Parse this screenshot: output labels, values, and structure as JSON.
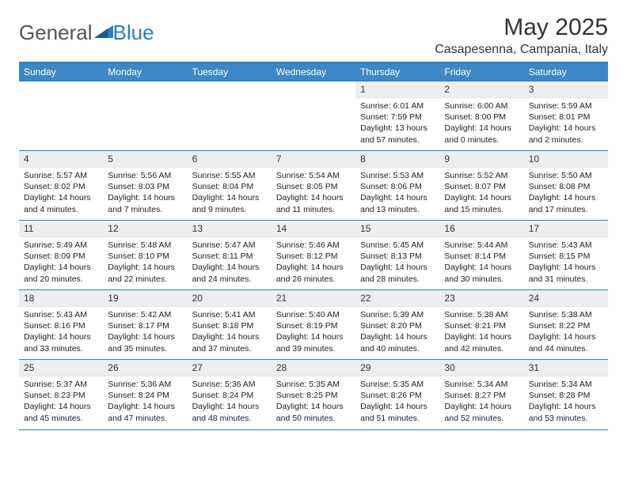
{
  "logo": {
    "text1": "General",
    "text2": "Blue"
  },
  "title": "May 2025",
  "location": "Casapesenna, Campania, Italy",
  "colors": {
    "header_bg": "#3d87c7",
    "header_text": "#ffffff",
    "rule": "#2e7bc0",
    "daynum_bg": "#eeeeee",
    "text": "#222222"
  },
  "day_headers": [
    "Sunday",
    "Monday",
    "Tuesday",
    "Wednesday",
    "Thursday",
    "Friday",
    "Saturday"
  ],
  "weeks": [
    [
      {
        "n": "",
        "sr": "",
        "ss": "",
        "dl": ""
      },
      {
        "n": "",
        "sr": "",
        "ss": "",
        "dl": ""
      },
      {
        "n": "",
        "sr": "",
        "ss": "",
        "dl": ""
      },
      {
        "n": "",
        "sr": "",
        "ss": "",
        "dl": ""
      },
      {
        "n": "1",
        "sr": "Sunrise: 6:01 AM",
        "ss": "Sunset: 7:59 PM",
        "dl": "Daylight: 13 hours and 57 minutes."
      },
      {
        "n": "2",
        "sr": "Sunrise: 6:00 AM",
        "ss": "Sunset: 8:00 PM",
        "dl": "Daylight: 14 hours and 0 minutes."
      },
      {
        "n": "3",
        "sr": "Sunrise: 5:59 AM",
        "ss": "Sunset: 8:01 PM",
        "dl": "Daylight: 14 hours and 2 minutes."
      }
    ],
    [
      {
        "n": "4",
        "sr": "Sunrise: 5:57 AM",
        "ss": "Sunset: 8:02 PM",
        "dl": "Daylight: 14 hours and 4 minutes."
      },
      {
        "n": "5",
        "sr": "Sunrise: 5:56 AM",
        "ss": "Sunset: 8:03 PM",
        "dl": "Daylight: 14 hours and 7 minutes."
      },
      {
        "n": "6",
        "sr": "Sunrise: 5:55 AM",
        "ss": "Sunset: 8:04 PM",
        "dl": "Daylight: 14 hours and 9 minutes."
      },
      {
        "n": "7",
        "sr": "Sunrise: 5:54 AM",
        "ss": "Sunset: 8:05 PM",
        "dl": "Daylight: 14 hours and 11 minutes."
      },
      {
        "n": "8",
        "sr": "Sunrise: 5:53 AM",
        "ss": "Sunset: 8:06 PM",
        "dl": "Daylight: 14 hours and 13 minutes."
      },
      {
        "n": "9",
        "sr": "Sunrise: 5:52 AM",
        "ss": "Sunset: 8:07 PM",
        "dl": "Daylight: 14 hours and 15 minutes."
      },
      {
        "n": "10",
        "sr": "Sunrise: 5:50 AM",
        "ss": "Sunset: 8:08 PM",
        "dl": "Daylight: 14 hours and 17 minutes."
      }
    ],
    [
      {
        "n": "11",
        "sr": "Sunrise: 5:49 AM",
        "ss": "Sunset: 8:09 PM",
        "dl": "Daylight: 14 hours and 20 minutes."
      },
      {
        "n": "12",
        "sr": "Sunrise: 5:48 AM",
        "ss": "Sunset: 8:10 PM",
        "dl": "Daylight: 14 hours and 22 minutes."
      },
      {
        "n": "13",
        "sr": "Sunrise: 5:47 AM",
        "ss": "Sunset: 8:11 PM",
        "dl": "Daylight: 14 hours and 24 minutes."
      },
      {
        "n": "14",
        "sr": "Sunrise: 5:46 AM",
        "ss": "Sunset: 8:12 PM",
        "dl": "Daylight: 14 hours and 26 minutes."
      },
      {
        "n": "15",
        "sr": "Sunrise: 5:45 AM",
        "ss": "Sunset: 8:13 PM",
        "dl": "Daylight: 14 hours and 28 minutes."
      },
      {
        "n": "16",
        "sr": "Sunrise: 5:44 AM",
        "ss": "Sunset: 8:14 PM",
        "dl": "Daylight: 14 hours and 30 minutes."
      },
      {
        "n": "17",
        "sr": "Sunrise: 5:43 AM",
        "ss": "Sunset: 8:15 PM",
        "dl": "Daylight: 14 hours and 31 minutes."
      }
    ],
    [
      {
        "n": "18",
        "sr": "Sunrise: 5:43 AM",
        "ss": "Sunset: 8:16 PM",
        "dl": "Daylight: 14 hours and 33 minutes."
      },
      {
        "n": "19",
        "sr": "Sunrise: 5:42 AM",
        "ss": "Sunset: 8:17 PM",
        "dl": "Daylight: 14 hours and 35 minutes."
      },
      {
        "n": "20",
        "sr": "Sunrise: 5:41 AM",
        "ss": "Sunset: 8:18 PM",
        "dl": "Daylight: 14 hours and 37 minutes."
      },
      {
        "n": "21",
        "sr": "Sunrise: 5:40 AM",
        "ss": "Sunset: 8:19 PM",
        "dl": "Daylight: 14 hours and 39 minutes."
      },
      {
        "n": "22",
        "sr": "Sunrise: 5:39 AM",
        "ss": "Sunset: 8:20 PM",
        "dl": "Daylight: 14 hours and 40 minutes."
      },
      {
        "n": "23",
        "sr": "Sunrise: 5:38 AM",
        "ss": "Sunset: 8:21 PM",
        "dl": "Daylight: 14 hours and 42 minutes."
      },
      {
        "n": "24",
        "sr": "Sunrise: 5:38 AM",
        "ss": "Sunset: 8:22 PM",
        "dl": "Daylight: 14 hours and 44 minutes."
      }
    ],
    [
      {
        "n": "25",
        "sr": "Sunrise: 5:37 AM",
        "ss": "Sunset: 8:23 PM",
        "dl": "Daylight: 14 hours and 45 minutes."
      },
      {
        "n": "26",
        "sr": "Sunrise: 5:36 AM",
        "ss": "Sunset: 8:24 PM",
        "dl": "Daylight: 14 hours and 47 minutes."
      },
      {
        "n": "27",
        "sr": "Sunrise: 5:36 AM",
        "ss": "Sunset: 8:24 PM",
        "dl": "Daylight: 14 hours and 48 minutes."
      },
      {
        "n": "28",
        "sr": "Sunrise: 5:35 AM",
        "ss": "Sunset: 8:25 PM",
        "dl": "Daylight: 14 hours and 50 minutes."
      },
      {
        "n": "29",
        "sr": "Sunrise: 5:35 AM",
        "ss": "Sunset: 8:26 PM",
        "dl": "Daylight: 14 hours and 51 minutes."
      },
      {
        "n": "30",
        "sr": "Sunrise: 5:34 AM",
        "ss": "Sunset: 8:27 PM",
        "dl": "Daylight: 14 hours and 52 minutes."
      },
      {
        "n": "31",
        "sr": "Sunrise: 5:34 AM",
        "ss": "Sunset: 8:28 PM",
        "dl": "Daylight: 14 hours and 53 minutes."
      }
    ]
  ]
}
